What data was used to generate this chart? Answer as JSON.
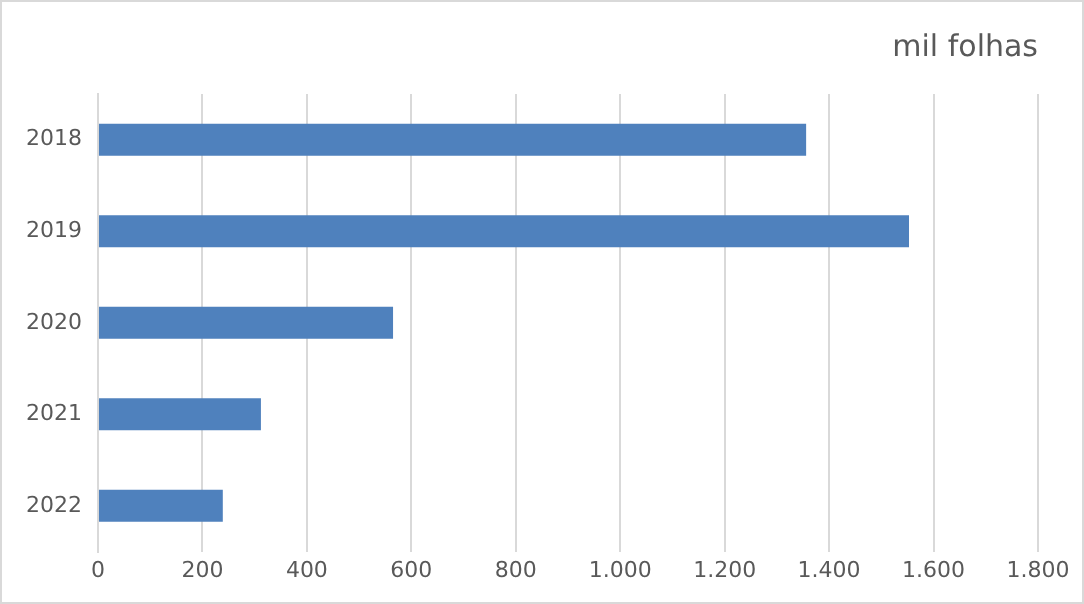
{
  "chart_data": {
    "type": "bar",
    "orientation": "horizontal",
    "title": "mil folhas",
    "categories": [
      "2018",
      "2019",
      "2020",
      "2021",
      "2022"
    ],
    "values": [
      1356,
      1553,
      565,
      312,
      239
    ],
    "color": "#4f81bd",
    "xlim": [
      0,
      1800
    ],
    "xticks": [
      0,
      200,
      400,
      600,
      800,
      {
        "value": 1000,
        "label": "1.000"
      },
      {
        "value": 1200,
        "label": "1.200"
      },
      {
        "value": 1400,
        "label": "1.400"
      },
      {
        "value": 1600,
        "label": "1.600"
      },
      {
        "value": 1800,
        "label": "1.800"
      }
    ],
    "grid": "x",
    "legend": false
  }
}
